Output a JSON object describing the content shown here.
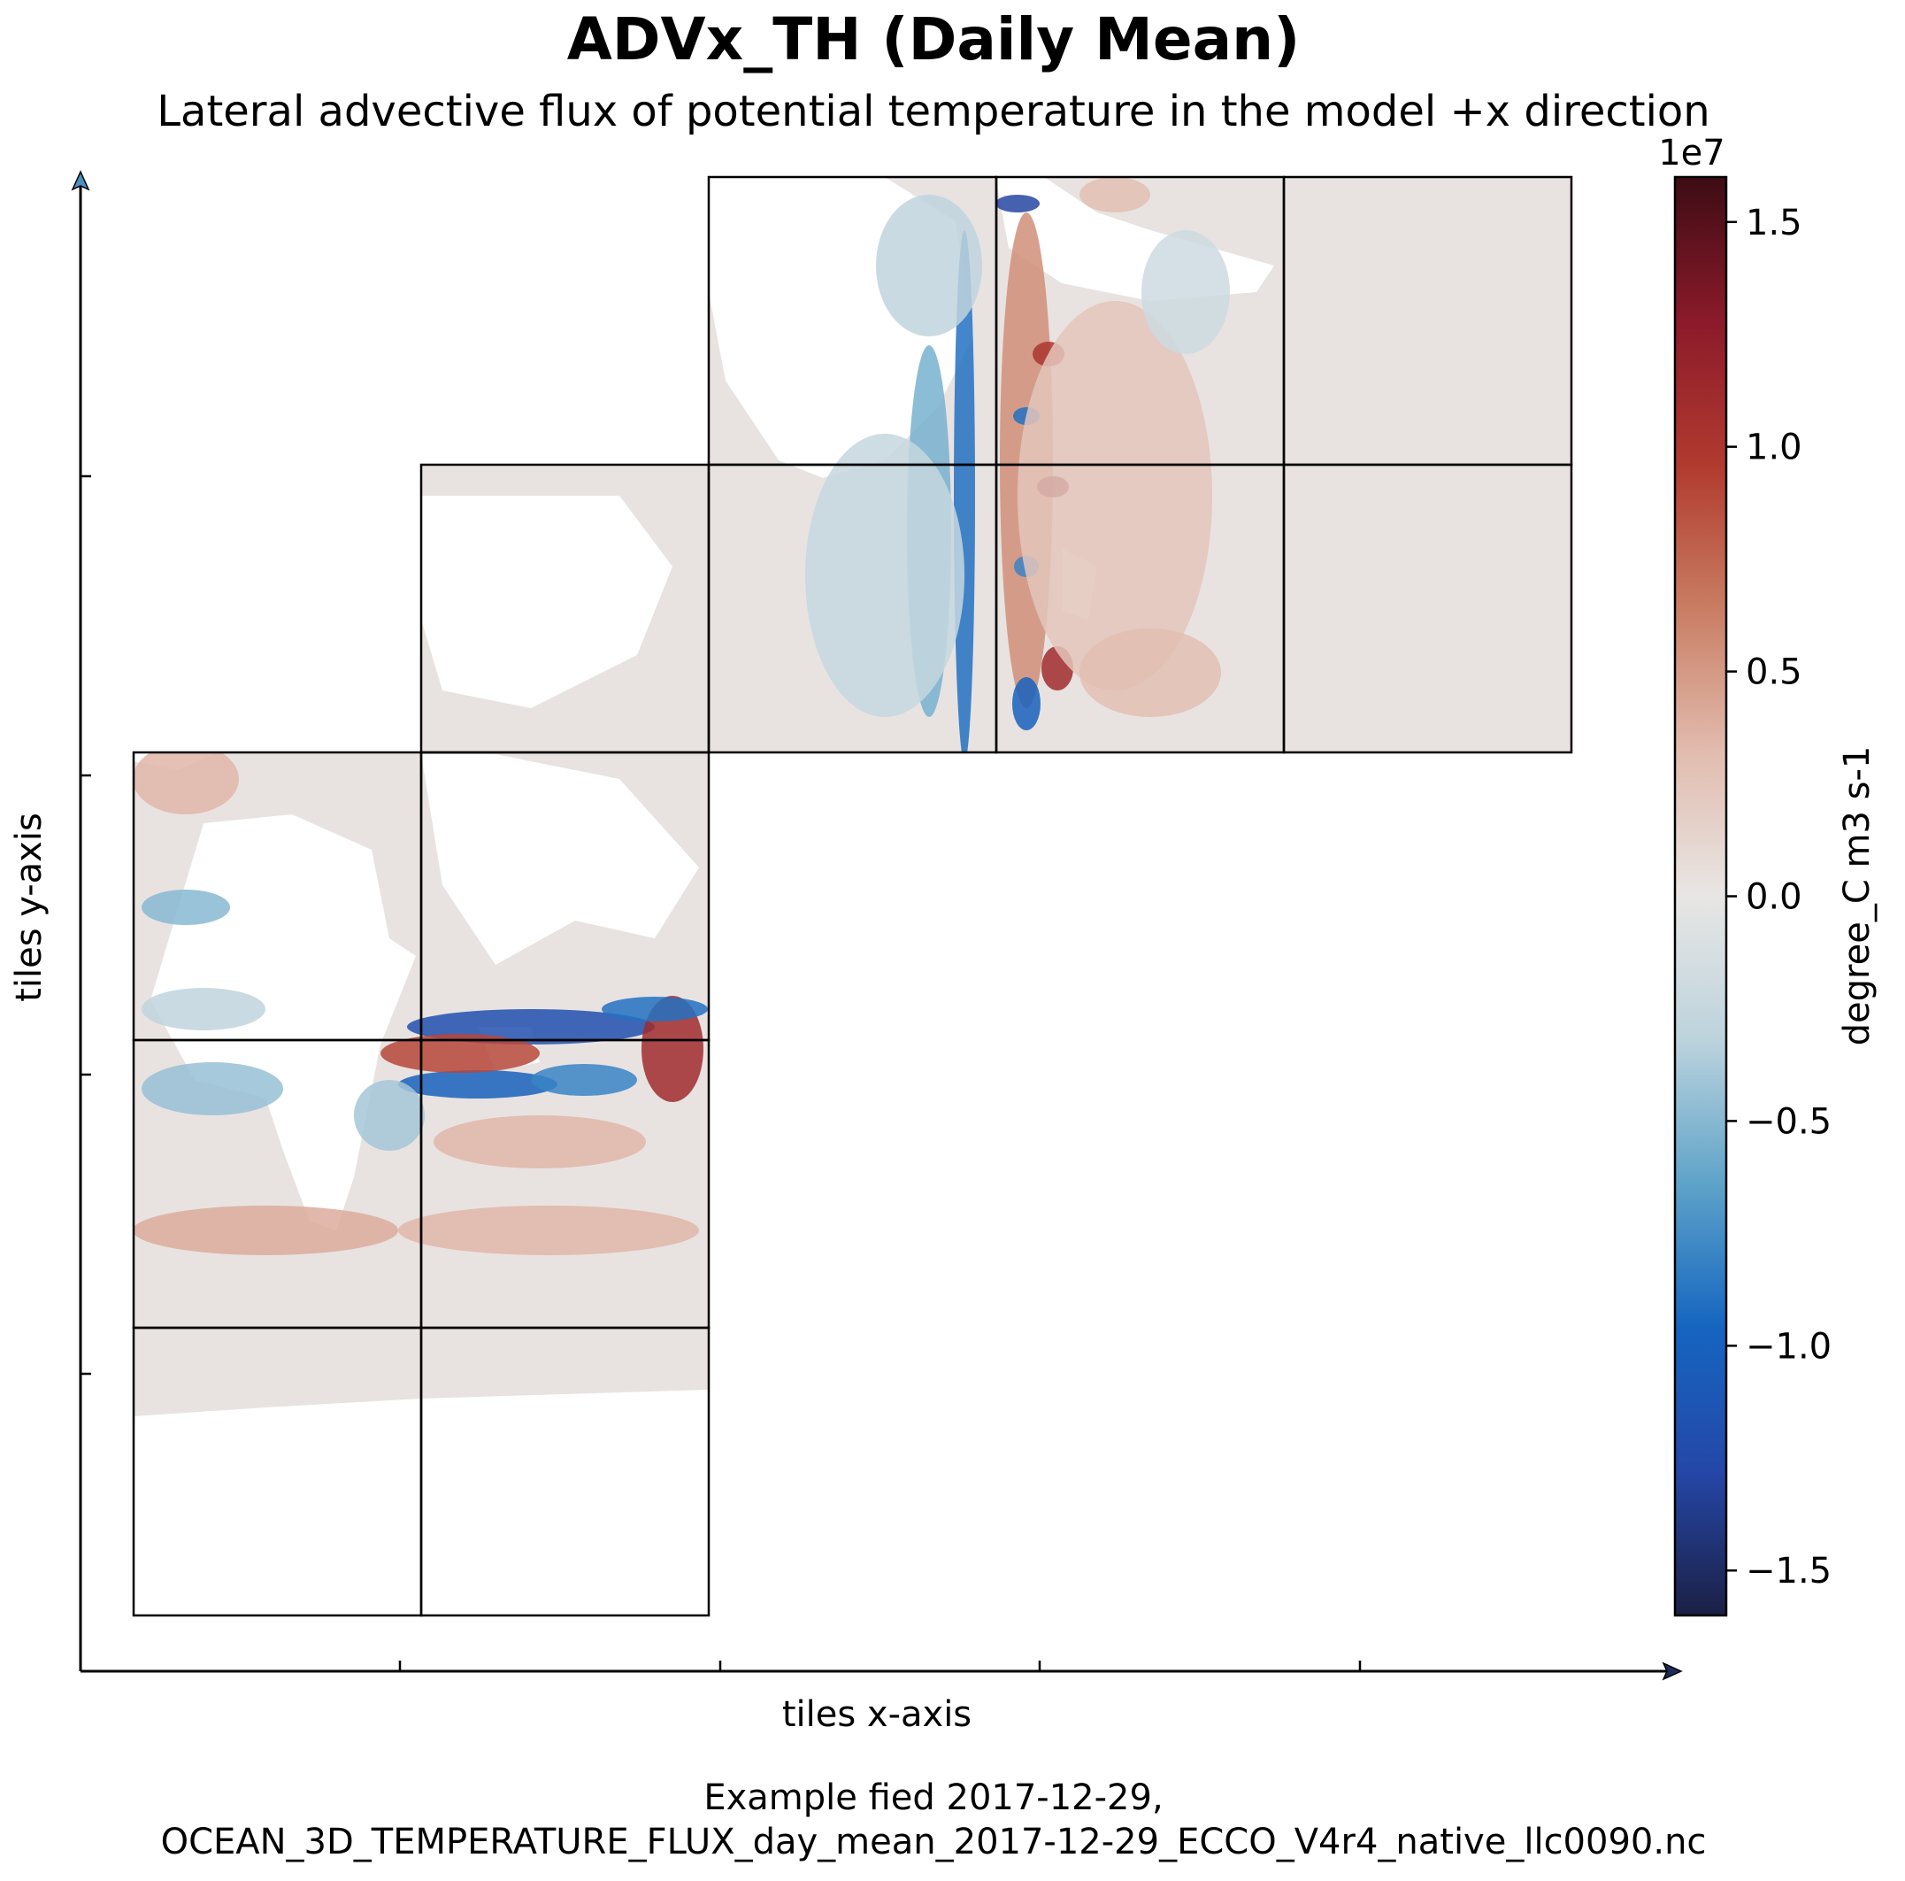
{
  "chart_data": {
    "type": "heatmap",
    "title": "ADVx_TH (Daily Mean)",
    "subtitle": "Lateral advective flux of potential temperature in the model +x direction",
    "xlabel": "tiles x-axis",
    "ylabel": "tiles y-axis",
    "colorbar": {
      "label": "degree_C m3 s-1",
      "multiplier": "1e7",
      "range": [
        -1.6,
        1.6
      ],
      "ticks": [
        -1.5,
        -1.0,
        -0.5,
        0.0,
        0.5,
        1.0,
        1.5
      ],
      "tick_labels": [
        "−1.5",
        "−1.0",
        "−0.5",
        "0.0",
        "0.5",
        "1.0",
        "1.5"
      ],
      "colors": [
        "#1b1f44",
        "#2547a8",
        "#1565c0",
        "#5ea3c9",
        "#bcd3dd",
        "#e8e6e4",
        "#e2bcaf",
        "#c97d63",
        "#b13a2f",
        "#8b1a2a",
        "#3d0c14"
      ]
    },
    "tile_grid": {
      "columns": 5,
      "rows": 5,
      "tiles": [
        [
          0,
          0
        ],
        [
          1,
          0
        ],
        [
          0,
          1
        ],
        [
          1,
          1
        ],
        [
          0,
          2
        ],
        [
          1,
          2
        ],
        [
          1,
          3
        ],
        [
          2,
          3
        ],
        [
          3,
          3
        ],
        [
          4,
          3
        ],
        [
          2,
          4
        ],
        [
          3,
          4
        ],
        [
          4,
          4
        ]
      ]
    },
    "grid": false,
    "legend": "colorbar-right"
  },
  "footer": {
    "line1": "Example fied 2017-12-29,",
    "line2": "OCEAN_3D_TEMPERATURE_FLUX_day_mean_2017-12-29_ECCO_V4r4_native_llc0090.nc"
  }
}
